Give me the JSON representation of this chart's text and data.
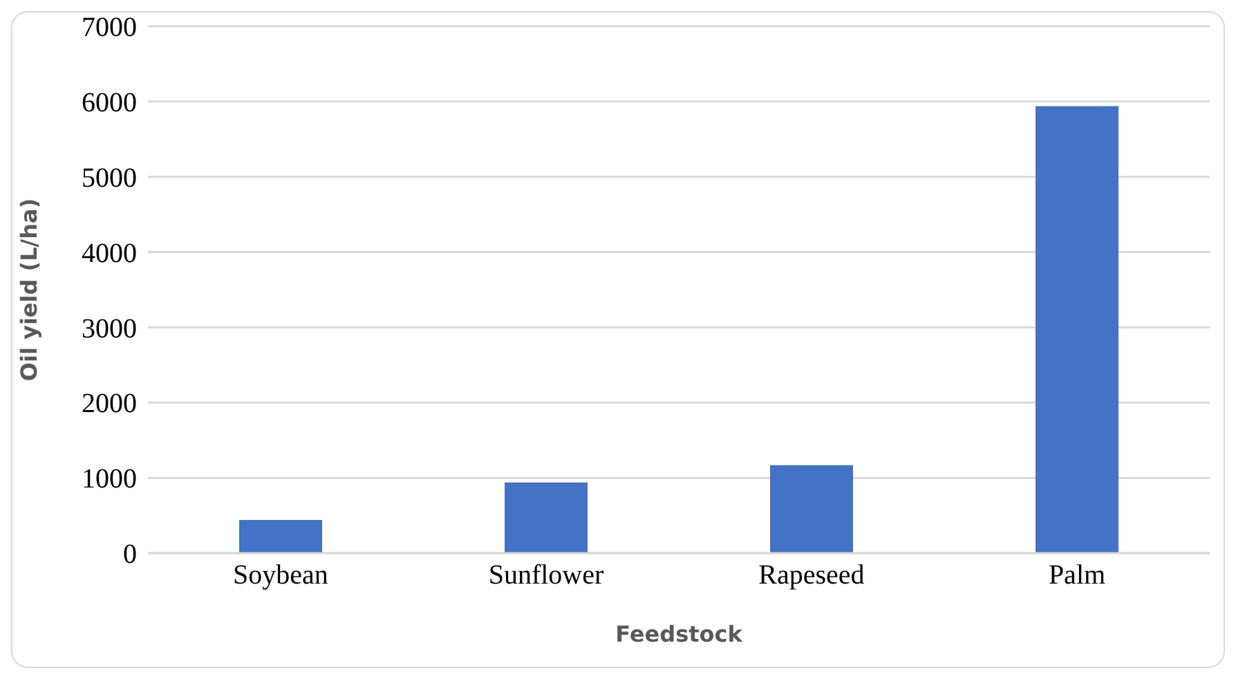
{
  "chart_data": {
    "type": "bar",
    "xlabel": "Feedstock",
    "ylabel": "Oil yield (L/ha)",
    "categories": [
      "Soybean",
      "Sunflower",
      "Rapeseed",
      "Palm"
    ],
    "values": [
      440,
      940,
      1170,
      5940
    ],
    "color": "#4472c4",
    "ylim": [
      0,
      7000
    ],
    "yticks": [
      0,
      1000,
      2000,
      3000,
      4000,
      5000,
      6000,
      7000
    ],
    "grid": "y",
    "legend": false
  }
}
